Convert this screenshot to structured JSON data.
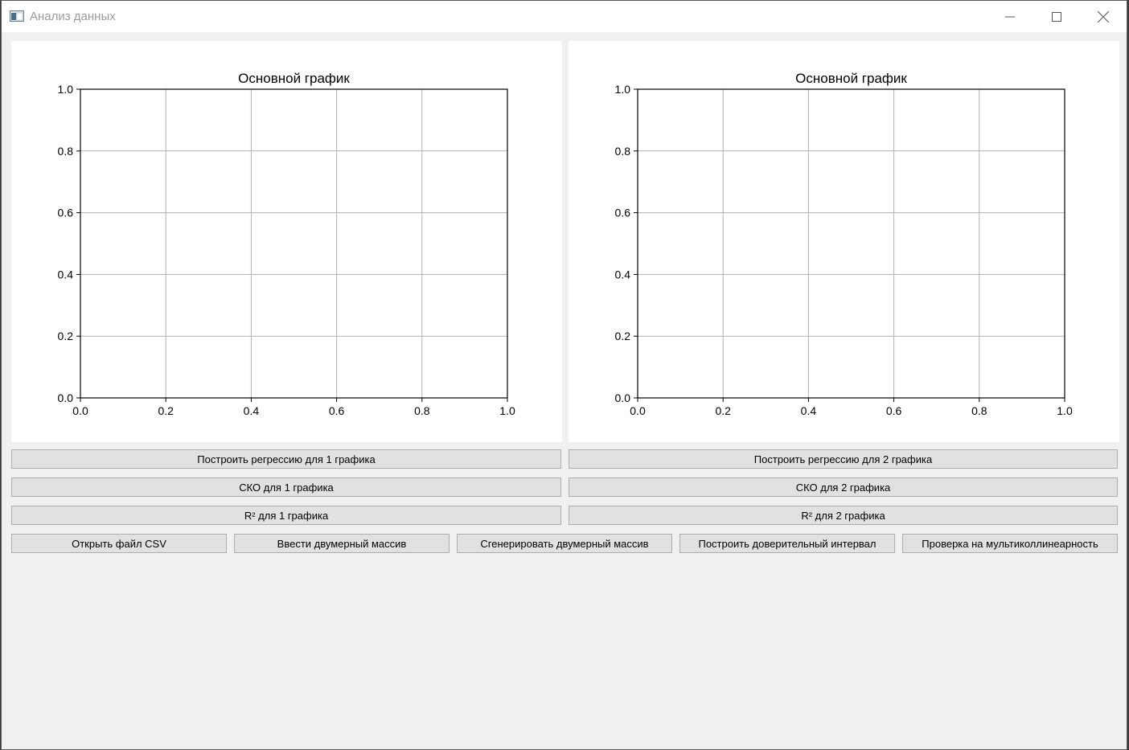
{
  "window": {
    "title": "Анализ данных",
    "icon": "app-window-icon",
    "controls": [
      "minimize-icon",
      "maximize-icon",
      "close-icon"
    ]
  },
  "charts": [
    {
      "title": "Основной график",
      "xticks": [
        "0.0",
        "0.2",
        "0.4",
        "0.6",
        "0.8",
        "1.0"
      ],
      "yticks": [
        "0.0",
        "0.2",
        "0.4",
        "0.6",
        "0.8",
        "1.0"
      ]
    },
    {
      "title": "Основной график",
      "xticks": [
        "0.0",
        "0.2",
        "0.4",
        "0.6",
        "0.8",
        "1.0"
      ],
      "yticks": [
        "0.0",
        "0.2",
        "0.4",
        "0.6",
        "0.8",
        "1.0"
      ]
    }
  ],
  "chart_data": [
    {
      "type": "line",
      "title": "Основной график",
      "xlabel": "",
      "ylabel": "",
      "xlim": [
        0,
        1
      ],
      "ylim": [
        0,
        1
      ],
      "xticks": [
        0,
        0.2,
        0.4,
        0.6,
        0.8,
        1.0
      ],
      "yticks": [
        0,
        0.2,
        0.4,
        0.6,
        0.8,
        1.0
      ],
      "grid": true,
      "series": []
    },
    {
      "type": "line",
      "title": "Основной график",
      "xlabel": "",
      "ylabel": "",
      "xlim": [
        0,
        1
      ],
      "ylim": [
        0,
        1
      ],
      "xticks": [
        0,
        0.2,
        0.4,
        0.6,
        0.8,
        1.0
      ],
      "yticks": [
        0,
        0.2,
        0.4,
        0.6,
        0.8,
        1.0
      ],
      "grid": true,
      "series": []
    }
  ],
  "buttons": {
    "regression_1": "Построить регрессию для 1 графика",
    "regression_2": "Построить регрессию для 2 графика",
    "sko_1": "СКО для 1 графика",
    "sko_2": "СКО для 2 графика",
    "r2_1": "R² для 1 графика",
    "r2_2": "R² для 2 графика",
    "open_csv": "Открыть файл CSV",
    "enter_array": "Ввести двумерный массив",
    "generate_array": "Сгенерировать двумерный массив",
    "confidence_interval": "Построить доверительный интервал",
    "multicollinearity": "Проверка на мультиколлинеарность"
  }
}
